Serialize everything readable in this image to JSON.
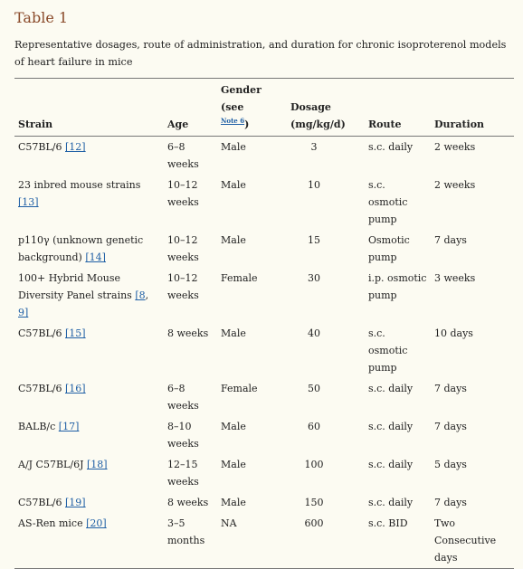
{
  "title": "Table 1",
  "caption": "Representative dosages, route of administration, and duration for chronic isoproterenol models of heart failure in mice",
  "headers": {
    "strain": "Strain",
    "age": "Age",
    "gender_pre": "Gender (see",
    "gender_note": "Note 6",
    "gender_post": ")",
    "dosage_line1": "Dosage",
    "dosage_line2": "(mg/kg/d)",
    "route": "Route",
    "duration": "Duration"
  },
  "rows": [
    {
      "strain": "C57BL/6 ",
      "ref": "[12]",
      "ref2": "",
      "age": "6–8 weeks",
      "gender": "Male",
      "dosage": "3",
      "route": "s.c. daily",
      "duration": "2 weeks"
    },
    {
      "strain": "23 inbred mouse strains ",
      "ref": "[13]",
      "ref2": "",
      "age": "10–12 weeks",
      "gender": "Male",
      "dosage": "10",
      "route": "s.c. osmotic pump",
      "duration": "2 weeks"
    },
    {
      "strain": "p110γ (unknown genetic background) ",
      "ref": "[14]",
      "ref2": "",
      "age": "10–12 weeks",
      "gender": "Male",
      "dosage": "15",
      "route": "Osmotic pump",
      "duration": "7 days"
    },
    {
      "strain": "100+ Hybrid Mouse Diversity Panel strains ",
      "ref": "[8",
      "ref2": "9]",
      "age": "10–12 weeks",
      "gender": "Female",
      "dosage": "30",
      "route": "i.p. osmotic pump",
      "duration": "3 weeks"
    },
    {
      "strain": "C57BL/6 ",
      "ref": "[15]",
      "ref2": "",
      "age": "8 weeks",
      "gender": "Male",
      "dosage": "40",
      "route": "s.c. osmotic pump",
      "duration": "10 days"
    },
    {
      "strain": "C57BL/6 ",
      "ref": "[16]",
      "ref2": "",
      "age": "6–8 weeks",
      "gender": "Female",
      "dosage": "50",
      "route": "s.c. daily",
      "duration": "7 days"
    },
    {
      "strain": "BALB/c ",
      "ref": "[17]",
      "ref2": "",
      "age": "8–10 weeks",
      "gender": "Male",
      "dosage": "60",
      "route": "s.c. daily",
      "duration": "7 days"
    },
    {
      "strain": "A/J C57BL/6J ",
      "ref": "[18]",
      "ref2": "",
      "age": "12–15 weeks",
      "gender": "Male",
      "dosage": "100",
      "route": "s.c. daily",
      "duration": "5 days"
    },
    {
      "strain": "C57BL/6 ",
      "ref": "[19]",
      "ref2": "",
      "age": "8 weeks",
      "gender": "Male",
      "dosage": "150",
      "route": "s.c. daily",
      "duration": "7 days"
    },
    {
      "strain": "AS-Ren mice ",
      "ref": "[20]",
      "ref2": "",
      "age": "3–5 months",
      "gender": "NA",
      "dosage": "600",
      "route": "s.c. BID",
      "duration": "Two Consecutive days"
    }
  ],
  "colors": {
    "title": "#8a4a2a",
    "link": "#1f5fa5",
    "background": "#fcfbf2",
    "rule": "#777777"
  }
}
